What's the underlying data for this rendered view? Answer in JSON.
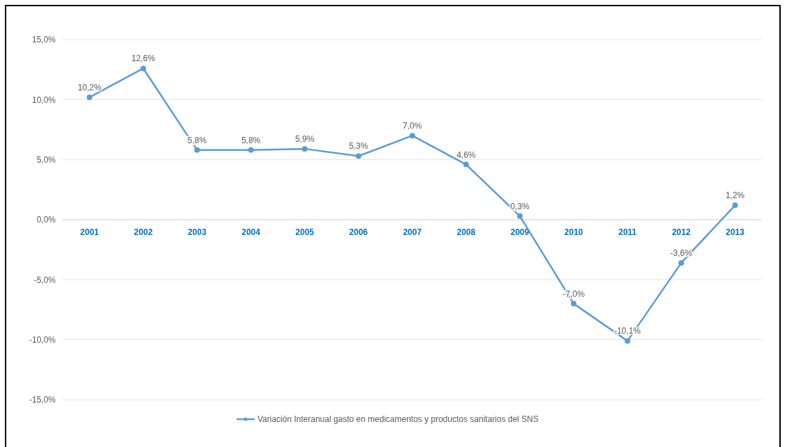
{
  "chart_data": {
    "type": "line",
    "categories": [
      "2001",
      "2002",
      "2003",
      "2004",
      "2005",
      "2006",
      "2007",
      "2008",
      "2009",
      "2010",
      "2011",
      "2012",
      "2013"
    ],
    "series": [
      {
        "name": "Variación Interanual gasto en medicamentos y productos sanitarios del SNS",
        "color": "#5b9bd5",
        "values": [
          10.2,
          12.6,
          5.8,
          5.8,
          5.9,
          5.3,
          7.0,
          4.6,
          0.3,
          -7.0,
          -10.1,
          -3.6,
          1.2
        ],
        "value_labels": [
          "10,2%",
          "12,6%",
          "5,8%",
          "5,8%",
          "5,9%",
          "5,3%",
          "7,0%",
          "4,6%",
          "0,3%",
          "-7,0%",
          "-10,1%",
          "-3,6%",
          "1,2%"
        ]
      }
    ],
    "ylim": [
      -15,
      15
    ],
    "yticks": [
      {
        "value": -15,
        "label": "-15,0%"
      },
      {
        "value": -10,
        "label": "-10,0%"
      },
      {
        "value": -5,
        "label": "-5,0%"
      },
      {
        "value": 0,
        "label": "0,0%"
      },
      {
        "value": 5,
        "label": "5,0%"
      },
      {
        "value": 10,
        "label": "10,0%"
      },
      {
        "value": 15,
        "label": "15,0%"
      }
    ],
    "grid": "y",
    "legend": "bottom",
    "marker": "circle",
    "line_style": "solid"
  }
}
